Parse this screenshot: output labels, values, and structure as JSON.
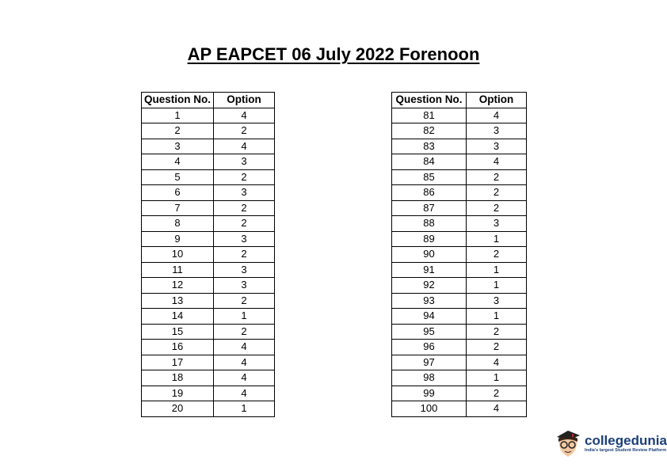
{
  "title": "AP EAPCET 06 July 2022 Forenoon",
  "tables": [
    {
      "headers": [
        "Question No.",
        "Option"
      ],
      "rows": [
        [
          "1",
          "4"
        ],
        [
          "2",
          "2"
        ],
        [
          "3",
          "4"
        ],
        [
          "4",
          "3"
        ],
        [
          "5",
          "2"
        ],
        [
          "6",
          "3"
        ],
        [
          "7",
          "2"
        ],
        [
          "8",
          "2"
        ],
        [
          "9",
          "3"
        ],
        [
          "10",
          "2"
        ],
        [
          "11",
          "3"
        ],
        [
          "12",
          "3"
        ],
        [
          "13",
          "2"
        ],
        [
          "14",
          "1"
        ],
        [
          "15",
          "2"
        ],
        [
          "16",
          "4"
        ],
        [
          "17",
          "4"
        ],
        [
          "18",
          "4"
        ],
        [
          "19",
          "4"
        ],
        [
          "20",
          "1"
        ]
      ]
    },
    {
      "headers": [
        "Question No.",
        "Option"
      ],
      "rows": [
        [
          "81",
          "4"
        ],
        [
          "82",
          "3"
        ],
        [
          "83",
          "3"
        ],
        [
          "84",
          "4"
        ],
        [
          "85",
          "2"
        ],
        [
          "86",
          "2"
        ],
        [
          "87",
          "2"
        ],
        [
          "88",
          "3"
        ],
        [
          "89",
          "1"
        ],
        [
          "90",
          "2"
        ],
        [
          "91",
          "1"
        ],
        [
          "92",
          "1"
        ],
        [
          "93",
          "3"
        ],
        [
          "94",
          "1"
        ],
        [
          "95",
          "2"
        ],
        [
          "96",
          "2"
        ],
        [
          "97",
          "4"
        ],
        [
          "98",
          "1"
        ],
        [
          "99",
          "2"
        ],
        [
          "100",
          "4"
        ]
      ]
    }
  ],
  "logo": {
    "name": "collegedunia",
    "tagline": "India's largest Student Review Platform",
    "brand_color": "#1c3f7a"
  }
}
